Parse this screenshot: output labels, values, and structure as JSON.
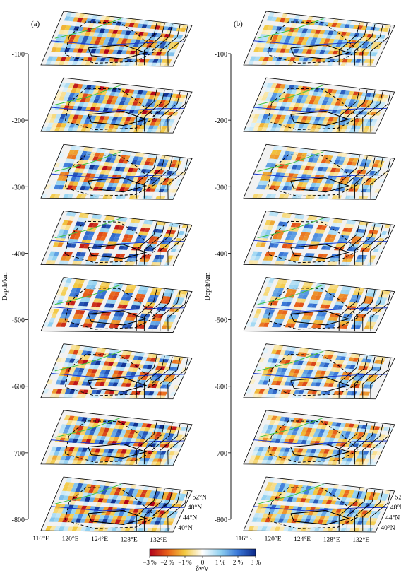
{
  "chart_data": {
    "type": "heatmap",
    "description_note": "",
    "panels": [
      {
        "label": "(a)"
      },
      {
        "label": "(b)"
      }
    ],
    "z_axis": {
      "label": "Depth/km",
      "ticks": [
        -100,
        -200,
        -300,
        -400,
        -500,
        -600,
        -700,
        -800
      ],
      "range": [
        -800,
        -100
      ]
    },
    "x_axis": {
      "ticks": [
        "116°E",
        "120°E",
        "124°E",
        "128°E",
        "132°E"
      ],
      "range_deg": [
        116,
        134
      ]
    },
    "y_axis": {
      "ticks": [
        "40°N",
        "44°N",
        "48°N",
        "52°N"
      ],
      "range_deg": [
        38,
        54
      ]
    },
    "depth_slices_km": [
      100,
      200,
      300,
      400,
      500,
      600,
      700,
      800
    ],
    "colorbar": {
      "label": "δv/v",
      "ticks": [
        "−3 %",
        "−2 %",
        "−1 %",
        "0",
        "1 %",
        "2 %",
        "3 %"
      ],
      "values": [
        -3,
        -2,
        -1,
        0,
        1,
        2,
        3
      ],
      "colors": [
        "#b0001a",
        "#e8601a",
        "#f2c840",
        "#ffffff",
        "#8fd0f0",
        "#3a78d8",
        "#0c2a8a"
      ]
    }
  }
}
